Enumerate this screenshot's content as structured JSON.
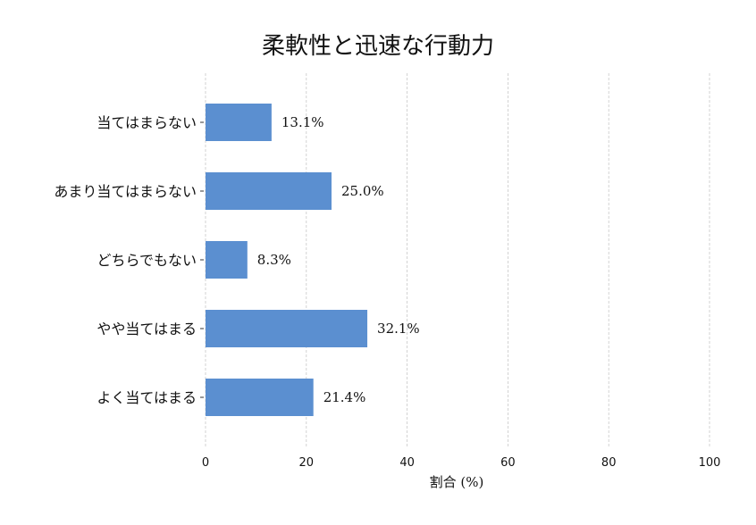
{
  "chart_data": {
    "type": "bar",
    "orientation": "horizontal",
    "title": "柔軟性と迅速な行動力",
    "xlabel": "割合 (%)",
    "ylabel": "",
    "categories": [
      "当てはまらない",
      "あまり当てはまらない",
      "どちらでもない",
      "やや当てはまる",
      "よく当てはまる"
    ],
    "values": [
      13.1,
      25.0,
      8.3,
      32.1,
      21.4
    ],
    "data_labels": [
      "13.1%",
      "25.0%",
      "8.3%",
      "32.1%",
      "21.4%"
    ],
    "xlim": [
      0,
      100
    ],
    "xticks": [
      0,
      20,
      40,
      60,
      80,
      100
    ],
    "xtick_labels": [
      "0",
      "20",
      "40",
      "60",
      "80",
      "100"
    ],
    "grid": "vertical-dashed",
    "legend": "none",
    "bar_color": "#5b8fd0"
  }
}
